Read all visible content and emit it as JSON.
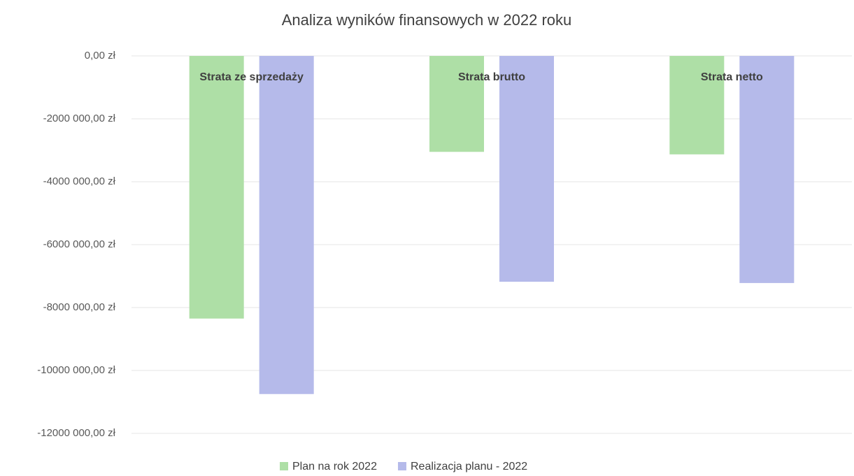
{
  "chart_data": {
    "type": "bar",
    "title": "Analiza wyników finansowych w 2022 roku",
    "categories": [
      "Strata ze sprzedaży",
      "Strata brutto",
      "Strata netto"
    ],
    "series": [
      {
        "name": "Plan na rok 2022",
        "color": "#aedfa6",
        "values": [
          -8350000,
          -3050000,
          -3130000
        ]
      },
      {
        "name": "Realizacja planu  - 2022",
        "color": "#b5baea",
        "values": [
          -10750000,
          -7180000,
          -7220000
        ]
      }
    ],
    "ylim": [
      -12000000,
      0
    ],
    "yticks": [
      {
        "value": 0,
        "label": "0,00 zł"
      },
      {
        "value": -2000000,
        "label": "-2000 000,00 zł"
      },
      {
        "value": -4000000,
        "label": "-4000 000,00 zł"
      },
      {
        "value": -6000000,
        "label": "-6000 000,00 zł"
      },
      {
        "value": -8000000,
        "label": "-8000 000,00 zł"
      },
      {
        "value": -10000000,
        "label": "-10000 000,00 zł"
      },
      {
        "value": -12000000,
        "label": "-12000 000,00 zł"
      }
    ],
    "grid": true,
    "legend": "bottom"
  }
}
